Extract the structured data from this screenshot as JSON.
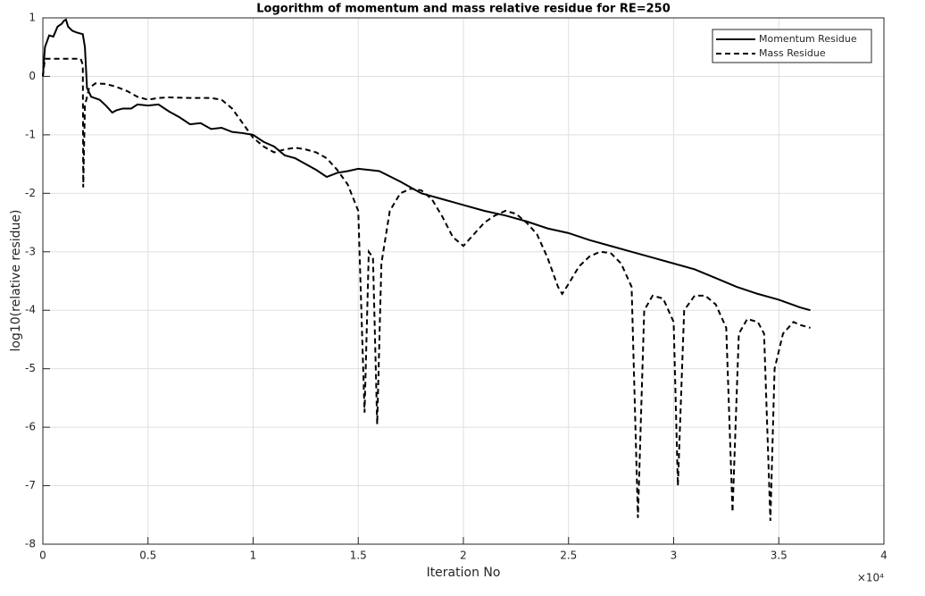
{
  "chart_data": {
    "type": "line",
    "title": "Logorithm of momentum and mass relative residue for RE=250",
    "x_label": "Iteration No",
    "y_label": "log10(relative residue)",
    "x_multiplier": "×10⁴",
    "xlim": [
      0,
      4
    ],
    "xticks": [
      0,
      0.5,
      1,
      1.5,
      2,
      2.5,
      3,
      3.5,
      4
    ],
    "ylim": [
      -8,
      1
    ],
    "yticks": [
      -8,
      -7,
      -6,
      -5,
      -4,
      -3,
      -2,
      -1,
      0,
      1
    ],
    "grid": true,
    "legend": "top-right",
    "series": [
      {
        "name": "Momentum Residue",
        "color": "#000000",
        "dash": "solid",
        "x": [
          0,
          0.01,
          0.03,
          0.05,
          0.07,
          0.09,
          0.1,
          0.11,
          0.12,
          0.14,
          0.16,
          0.19,
          0.2,
          0.21,
          0.23,
          0.27,
          0.3,
          0.33,
          0.35,
          0.38,
          0.42,
          0.45,
          0.5,
          0.55,
          0.6,
          0.65,
          0.7,
          0.75,
          0.8,
          0.85,
          0.9,
          0.95,
          1.0,
          1.05,
          1.1,
          1.15,
          1.2,
          1.25,
          1.3,
          1.35,
          1.4,
          1.45,
          1.5,
          1.55,
          1.6,
          1.7,
          1.8,
          1.9,
          2.0,
          2.1,
          2.2,
          2.3,
          2.4,
          2.5,
          2.6,
          2.7,
          2.8,
          2.9,
          3.0,
          3.1,
          3.2,
          3.3,
          3.4,
          3.5,
          3.6,
          3.65
        ],
        "values": [
          0,
          0.5,
          0.7,
          0.68,
          0.85,
          0.9,
          0.95,
          0.97,
          0.85,
          0.78,
          0.75,
          0.72,
          0.5,
          -0.2,
          -0.35,
          -0.4,
          -0.5,
          -0.62,
          -0.58,
          -0.55,
          -0.55,
          -0.48,
          -0.5,
          -0.48,
          -0.6,
          -0.7,
          -0.82,
          -0.8,
          -0.9,
          -0.88,
          -0.95,
          -0.97,
          -1.0,
          -1.12,
          -1.2,
          -1.35,
          -1.4,
          -1.5,
          -1.6,
          -1.72,
          -1.65,
          -1.62,
          -1.58,
          -1.6,
          -1.62,
          -1.8,
          -2.0,
          -2.1,
          -2.2,
          -2.3,
          -2.38,
          -2.48,
          -2.6,
          -2.68,
          -2.8,
          -2.9,
          -3.0,
          -3.1,
          -3.2,
          -3.3,
          -3.45,
          -3.6,
          -3.72,
          -3.82,
          -3.95,
          -4.0
        ]
      },
      {
        "name": "Mass Residue",
        "color": "#000000",
        "dash": "dashed",
        "x": [
          0,
          0.01,
          0.18,
          0.19,
          0.192,
          0.2,
          0.22,
          0.25,
          0.3,
          0.35,
          0.4,
          0.45,
          0.5,
          0.55,
          0.6,
          0.7,
          0.8,
          0.85,
          0.9,
          0.95,
          1.0,
          1.05,
          1.1,
          1.15,
          1.2,
          1.25,
          1.3,
          1.35,
          1.4,
          1.45,
          1.5,
          1.53,
          1.55,
          1.57,
          1.59,
          1.61,
          1.65,
          1.7,
          1.75,
          1.8,
          1.85,
          1.9,
          1.95,
          2.0,
          2.05,
          2.1,
          2.15,
          2.2,
          2.25,
          2.3,
          2.35,
          2.4,
          2.45,
          2.47,
          2.5,
          2.55,
          2.6,
          2.65,
          2.7,
          2.75,
          2.8,
          2.83,
          2.86,
          2.9,
          2.95,
          3.0,
          3.02,
          3.05,
          3.1,
          3.15,
          3.2,
          3.25,
          3.28,
          3.31,
          3.35,
          3.4,
          3.43,
          3.46,
          3.48,
          3.52,
          3.57,
          3.6,
          3.65
        ],
        "values": [
          0,
          0.3,
          0.3,
          0.2,
          -1.9,
          -0.5,
          -0.2,
          -0.12,
          -0.13,
          -0.18,
          -0.25,
          -0.35,
          -0.4,
          -0.37,
          -0.36,
          -0.37,
          -0.37,
          -0.4,
          -0.55,
          -0.8,
          -1.05,
          -1.2,
          -1.3,
          -1.25,
          -1.22,
          -1.25,
          -1.3,
          -1.4,
          -1.6,
          -1.85,
          -2.3,
          -5.75,
          -3.0,
          -3.1,
          -5.95,
          -3.2,
          -2.3,
          -2.0,
          -1.92,
          -1.95,
          -2.1,
          -2.4,
          -2.75,
          -2.9,
          -2.7,
          -2.5,
          -2.38,
          -2.3,
          -2.35,
          -2.5,
          -2.7,
          -3.1,
          -3.6,
          -3.72,
          -3.55,
          -3.25,
          -3.08,
          -3.0,
          -3.02,
          -3.2,
          -3.6,
          -7.55,
          -4.0,
          -3.75,
          -3.8,
          -4.2,
          -7.0,
          -4.0,
          -3.75,
          -3.75,
          -3.9,
          -4.3,
          -7.45,
          -4.4,
          -4.15,
          -4.2,
          -4.4,
          -7.6,
          -5.0,
          -4.4,
          -4.2,
          -4.25,
          -4.3
        ]
      }
    ]
  }
}
